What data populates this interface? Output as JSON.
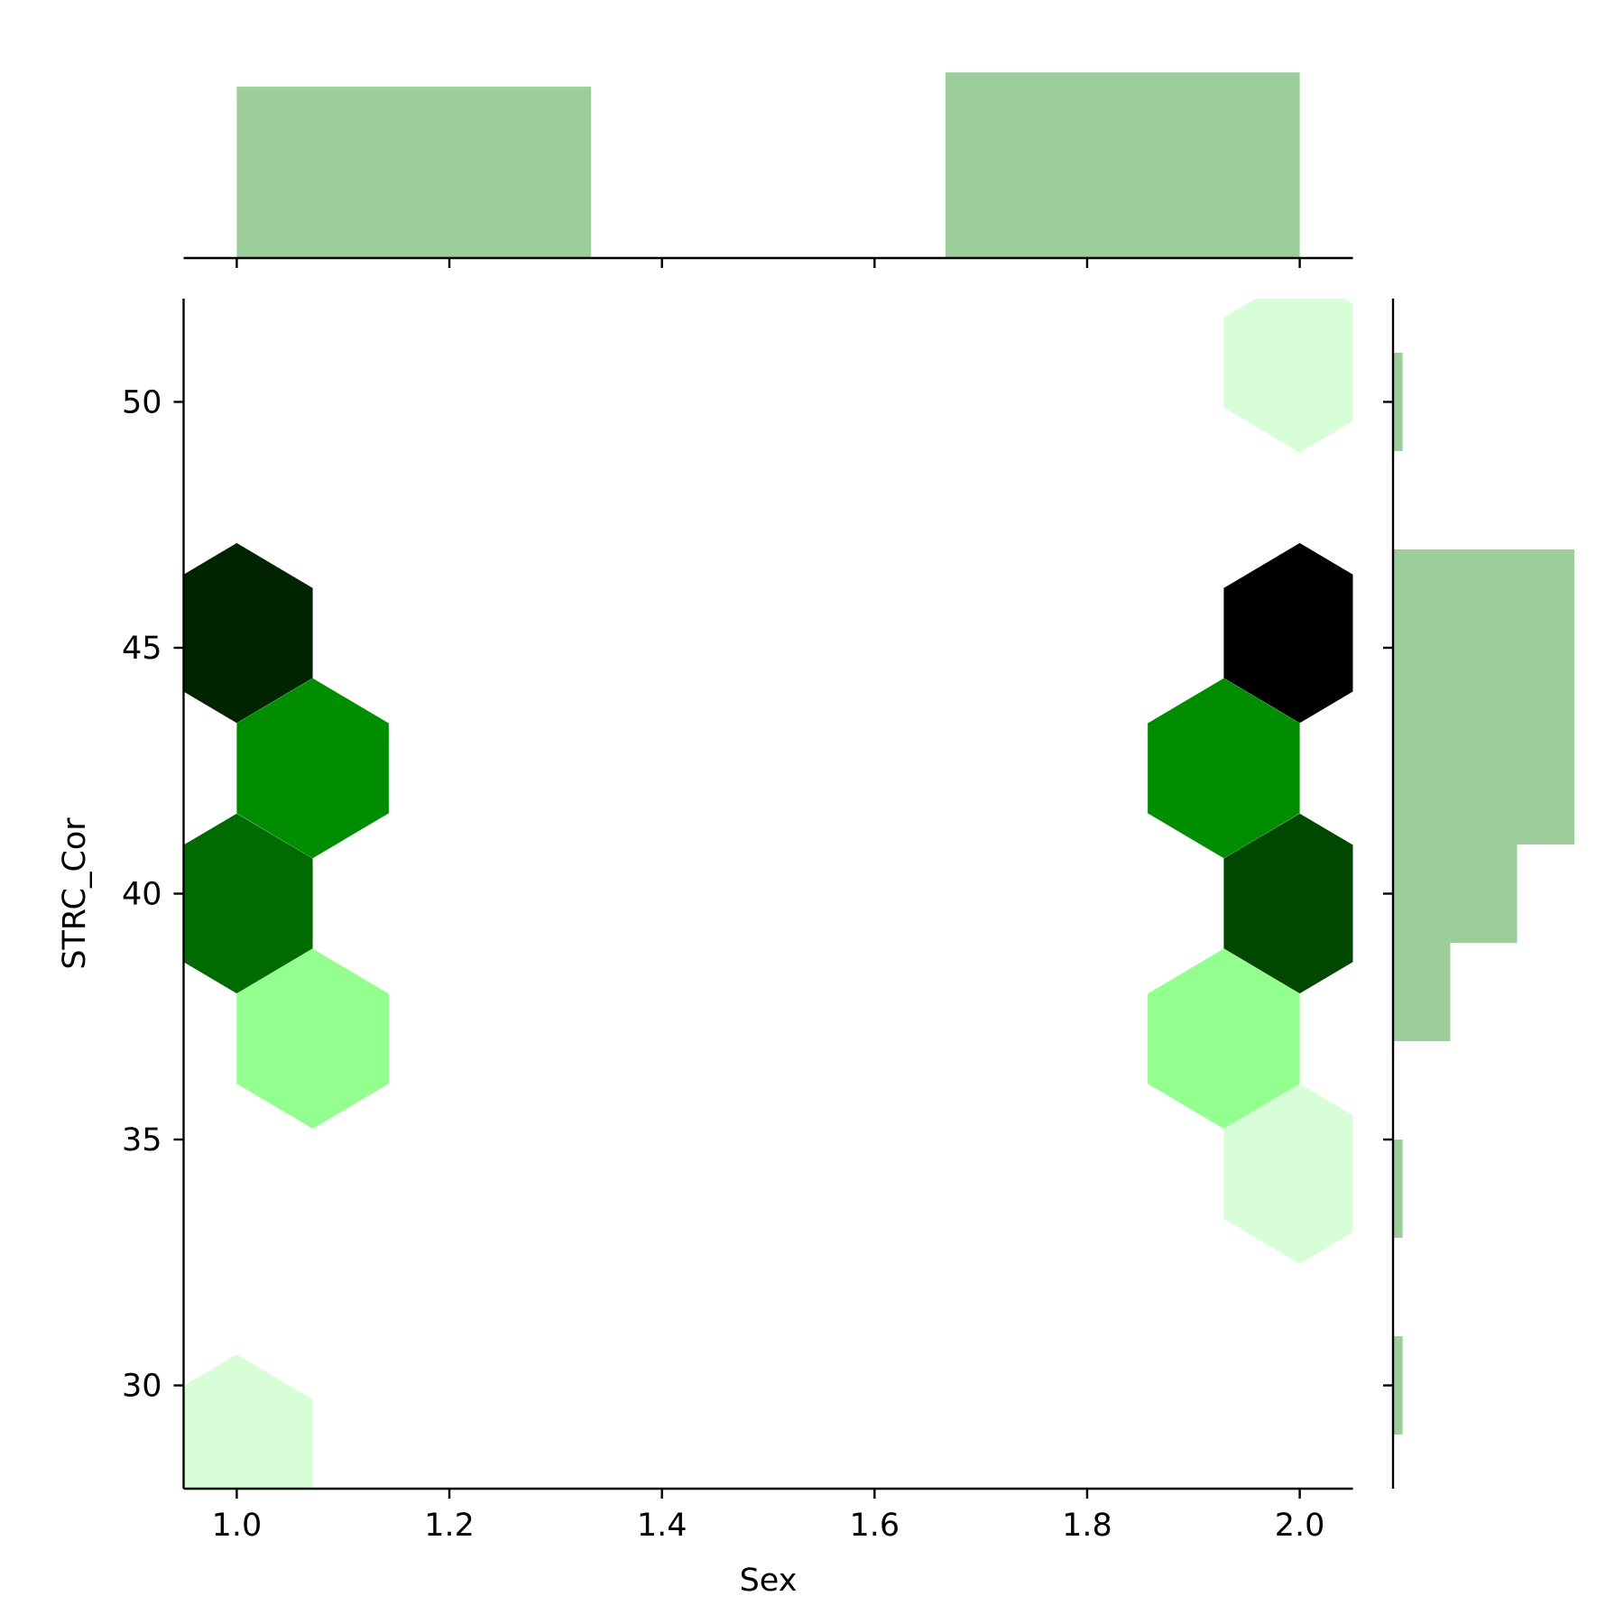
{
  "chart_data": {
    "type": "hexbin",
    "xlabel": "Sex",
    "ylabel": "STRC_Cor",
    "xlim": [
      0.95,
      2.05
    ],
    "ylim": [
      27.9,
      52.1
    ],
    "xticks": [
      1.0,
      1.2,
      1.4,
      1.6,
      1.8,
      2.0
    ],
    "xtick_labels": [
      "1.0",
      "1.2",
      "1.4",
      "1.6",
      "1.8",
      "2.0"
    ],
    "yticks": [
      30,
      35,
      40,
      45,
      50
    ],
    "ytick_labels": [
      "30",
      "35",
      "40",
      "45",
      "50"
    ],
    "grid": false,
    "hexbins": [
      {
        "x": 1.0,
        "y": 45.3,
        "color": "#002400"
      },
      {
        "x": 1.0715,
        "y": 42.55,
        "color": "#008e00"
      },
      {
        "x": 1.0,
        "y": 39.8,
        "color": "#006b00"
      },
      {
        "x": 1.0715,
        "y": 37.05,
        "color": "#93ff8e"
      },
      {
        "x": 1.0,
        "y": 28.8,
        "color": "#d8fed7"
      },
      {
        "x": 2.0,
        "y": 50.8,
        "color": "#d8fed7"
      },
      {
        "x": 2.0,
        "y": 45.3,
        "color": "#000000"
      },
      {
        "x": 1.9285,
        "y": 42.55,
        "color": "#008e00"
      },
      {
        "x": 2.0,
        "y": 39.8,
        "color": "#004700"
      },
      {
        "x": 1.9285,
        "y": 37.05,
        "color": "#93ff8e"
      },
      {
        "x": 2.0,
        "y": 34.3,
        "color": "#d8fed7"
      }
    ],
    "marginal_x": {
      "bins": [
        {
          "start": 1.0,
          "end": 1.3333,
          "count": 36
        },
        {
          "start": 1.3333,
          "end": 1.6667,
          "count": 0
        },
        {
          "start": 1.6667,
          "end": 2.0,
          "count": 39
        }
      ]
    },
    "marginal_y": {
      "bins": [
        {
          "start": 29,
          "end": 31,
          "count": 1
        },
        {
          "start": 31,
          "end": 33,
          "count": 0
        },
        {
          "start": 33,
          "end": 35,
          "count": 1
        },
        {
          "start": 35,
          "end": 37,
          "count": 0
        },
        {
          "start": 37,
          "end": 39,
          "count": 6
        },
        {
          "start": 39,
          "end": 41,
          "count": 13
        },
        {
          "start": 41,
          "end": 43,
          "count": 19
        },
        {
          "start": 43,
          "end": 45,
          "count": 19
        },
        {
          "start": 45,
          "end": 47,
          "count": 19
        },
        {
          "start": 47,
          "end": 49,
          "count": 0
        },
        {
          "start": 49,
          "end": 51,
          "count": 1
        }
      ]
    },
    "colors": {
      "marginal_bar": "#9ccd9a"
    }
  }
}
